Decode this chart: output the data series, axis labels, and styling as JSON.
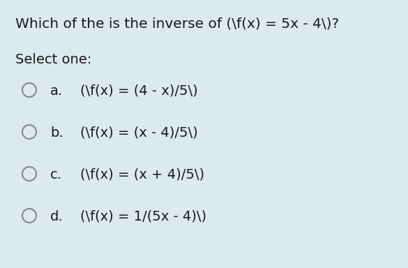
{
  "background_color": "#dce9f0",
  "title": "Which of the is the inverse of (\\f(x) = 5x - 4\\)?",
  "select_one": "Select one:",
  "options": [
    {
      "label": "a.",
      "text": "(\\f(x) = (4 - x)/5\\)"
    },
    {
      "label": "b.",
      "text": "(\\f(x) = (x - 4)/5\\)"
    },
    {
      "label": "c.",
      "text": "(\\f(x) = (x + 4)/5\\)"
    },
    {
      "label": "d.",
      "text": "(\\f(x) = 1/(5x - 4)\\)"
    }
  ],
  "title_fontsize": 14.5,
  "select_fontsize": 14,
  "option_fontsize": 14,
  "label_fontsize": 14,
  "text_color": "#1a1a1a",
  "circle_color": "#888888",
  "circle_linewidth": 1.5
}
